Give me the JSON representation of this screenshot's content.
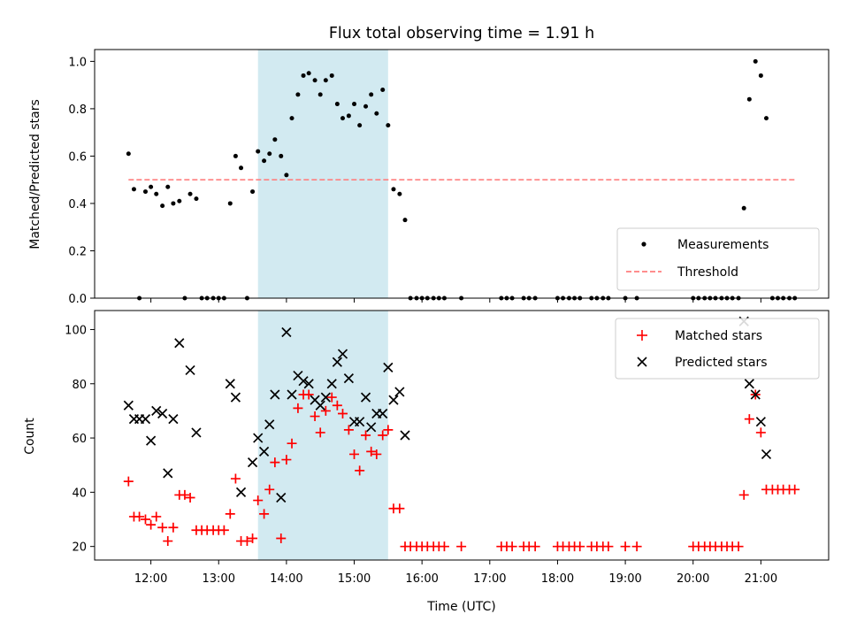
{
  "chart_data": [
    {
      "type": "scatter",
      "title": "Flux total observing time = 1.91 h",
      "xlabel": "",
      "ylabel": "Matched/Predicted stars",
      "x_unit": "hours UTC",
      "xlim": [
        11.17,
        22.0
      ],
      "ylim": [
        0,
        1.05
      ],
      "yticks": [
        "0.0",
        "0.2",
        "0.4",
        "0.6",
        "0.8",
        "1.0"
      ],
      "shaded_span": [
        13.58,
        15.5
      ],
      "shade_color": "#add8e6",
      "threshold": {
        "name": "Threshold",
        "value": 0.5,
        "x_range": [
          11.67,
          21.5
        ],
        "color": "#ff7f7f"
      },
      "legend": {
        "position": "lower-right",
        "entries": [
          "Measurements",
          "Threshold"
        ]
      },
      "series": [
        {
          "name": "Measurements",
          "marker": "dot",
          "color": "#000000",
          "points": [
            [
              11.67,
              0.61
            ],
            [
              11.75,
              0.46
            ],
            [
              11.83,
              0.0
            ],
            [
              11.92,
              0.45
            ],
            [
              12.0,
              0.47
            ],
            [
              12.08,
              0.44
            ],
            [
              12.17,
              0.39
            ],
            [
              12.25,
              0.47
            ],
            [
              12.33,
              0.4
            ],
            [
              12.42,
              0.41
            ],
            [
              12.5,
              0.0
            ],
            [
              12.58,
              0.44
            ],
            [
              12.67,
              0.42
            ],
            [
              12.75,
              0.0
            ],
            [
              12.83,
              0.0
            ],
            [
              12.92,
              0.0
            ],
            [
              13.0,
              0.0
            ],
            [
              13.08,
              0.0
            ],
            [
              13.17,
              0.4
            ],
            [
              13.25,
              0.6
            ],
            [
              13.33,
              0.55
            ],
            [
              13.42,
              0.0
            ],
            [
              13.5,
              0.45
            ],
            [
              13.58,
              0.62
            ],
            [
              13.67,
              0.58
            ],
            [
              13.75,
              0.61
            ],
            [
              13.83,
              0.67
            ],
            [
              13.92,
              0.6
            ],
            [
              14.0,
              0.52
            ],
            [
              14.08,
              0.76
            ],
            [
              14.17,
              0.86
            ],
            [
              14.25,
              0.94
            ],
            [
              14.33,
              0.95
            ],
            [
              14.42,
              0.92
            ],
            [
              14.5,
              0.86
            ],
            [
              14.58,
              0.92
            ],
            [
              14.67,
              0.94
            ],
            [
              14.75,
              0.82
            ],
            [
              14.83,
              0.76
            ],
            [
              14.92,
              0.77
            ],
            [
              15.0,
              0.82
            ],
            [
              15.08,
              0.73
            ],
            [
              15.17,
              0.81
            ],
            [
              15.25,
              0.86
            ],
            [
              15.33,
              0.78
            ],
            [
              15.42,
              0.88
            ],
            [
              15.5,
              0.73
            ],
            [
              15.58,
              0.46
            ],
            [
              15.67,
              0.44
            ],
            [
              15.75,
              0.33
            ],
            [
              15.83,
              0.0
            ],
            [
              15.92,
              0.0
            ],
            [
              16.0,
              0.0
            ],
            [
              16.08,
              0.0
            ],
            [
              16.17,
              0.0
            ],
            [
              16.25,
              0.0
            ],
            [
              16.33,
              0.0
            ],
            [
              16.58,
              0.0
            ],
            [
              17.17,
              0.0
            ],
            [
              17.25,
              0.0
            ],
            [
              17.33,
              0.0
            ],
            [
              17.5,
              0.0
            ],
            [
              17.58,
              0.0
            ],
            [
              17.67,
              0.0
            ],
            [
              18.0,
              0.0
            ],
            [
              18.08,
              0.0
            ],
            [
              18.17,
              0.0
            ],
            [
              18.25,
              0.0
            ],
            [
              18.33,
              0.0
            ],
            [
              18.5,
              0.0
            ],
            [
              18.58,
              0.0
            ],
            [
              18.67,
              0.0
            ],
            [
              18.75,
              0.0
            ],
            [
              19.0,
              0.0
            ],
            [
              19.17,
              0.0
            ],
            [
              20.0,
              0.0
            ],
            [
              20.08,
              0.0
            ],
            [
              20.17,
              0.0
            ],
            [
              20.25,
              0.0
            ],
            [
              20.33,
              0.0
            ],
            [
              20.42,
              0.0
            ],
            [
              20.5,
              0.0
            ],
            [
              20.58,
              0.0
            ],
            [
              20.67,
              0.0
            ],
            [
              20.75,
              0.38
            ],
            [
              20.83,
              0.84
            ],
            [
              20.92,
              1.0
            ],
            [
              21.0,
              0.94
            ],
            [
              21.08,
              0.76
            ],
            [
              21.17,
              0.0
            ],
            [
              21.25,
              0.0
            ],
            [
              21.33,
              0.0
            ],
            [
              21.42,
              0.0
            ],
            [
              21.5,
              0.0
            ]
          ]
        }
      ]
    },
    {
      "type": "scatter",
      "title": "",
      "xlabel": "Time (UTC)",
      "ylabel": "Count",
      "x_unit": "hours UTC",
      "xlim": [
        11.17,
        22.0
      ],
      "ylim": [
        15,
        107
      ],
      "xticks": [
        {
          "value": 12,
          "label": "12:00"
        },
        {
          "value": 13,
          "label": "13:00"
        },
        {
          "value": 14,
          "label": "14:00"
        },
        {
          "value": 15,
          "label": "15:00"
        },
        {
          "value": 16,
          "label": "16:00"
        },
        {
          "value": 17,
          "label": "17:00"
        },
        {
          "value": 18,
          "label": "18:00"
        },
        {
          "value": 19,
          "label": "19:00"
        },
        {
          "value": 20,
          "label": "20:00"
        },
        {
          "value": 21,
          "label": "21:00"
        }
      ],
      "yticks": [
        "20",
        "40",
        "60",
        "80",
        "100"
      ],
      "shaded_span": [
        13.58,
        15.5
      ],
      "shade_color": "#add8e6",
      "legend": {
        "position": "upper-right",
        "entries": [
          "Matched stars",
          "Predicted stars"
        ]
      },
      "series": [
        {
          "name": "Matched stars",
          "marker": "plus",
          "color": "#ff0000",
          "points": [
            [
              11.67,
              44
            ],
            [
              11.75,
              31
            ],
            [
              11.83,
              31
            ],
            [
              11.92,
              30
            ],
            [
              12.0,
              28
            ],
            [
              12.08,
              31
            ],
            [
              12.17,
              27
            ],
            [
              12.25,
              22
            ],
            [
              12.33,
              27
            ],
            [
              12.42,
              39
            ],
            [
              12.5,
              39
            ],
            [
              12.58,
              38
            ],
            [
              12.67,
              26
            ],
            [
              12.75,
              26
            ],
            [
              12.83,
              26
            ],
            [
              12.92,
              26
            ],
            [
              13.0,
              26
            ],
            [
              13.08,
              26
            ],
            [
              13.17,
              32
            ],
            [
              13.25,
              45
            ],
            [
              13.33,
              22
            ],
            [
              13.42,
              22
            ],
            [
              13.5,
              23
            ],
            [
              13.58,
              37
            ],
            [
              13.67,
              32
            ],
            [
              13.75,
              41
            ],
            [
              13.83,
              51
            ],
            [
              13.92,
              23
            ],
            [
              14.0,
              52
            ],
            [
              14.08,
              58
            ],
            [
              14.17,
              71
            ],
            [
              14.25,
              76
            ],
            [
              14.33,
              76
            ],
            [
              14.42,
              68
            ],
            [
              14.5,
              62
            ],
            [
              14.58,
              70
            ],
            [
              14.67,
              75
            ],
            [
              14.75,
              72
            ],
            [
              14.83,
              69
            ],
            [
              14.92,
              63
            ],
            [
              15.0,
              54
            ],
            [
              15.08,
              48
            ],
            [
              15.17,
              61
            ],
            [
              15.25,
              55
            ],
            [
              15.33,
              54
            ],
            [
              15.42,
              61
            ],
            [
              15.5,
              63
            ],
            [
              15.58,
              34
            ],
            [
              15.67,
              34
            ],
            [
              15.75,
              20
            ],
            [
              15.83,
              20
            ],
            [
              15.92,
              20
            ],
            [
              16.0,
              20
            ],
            [
              16.08,
              20
            ],
            [
              16.17,
              20
            ],
            [
              16.25,
              20
            ],
            [
              16.33,
              20
            ],
            [
              16.58,
              20
            ],
            [
              17.17,
              20
            ],
            [
              17.25,
              20
            ],
            [
              17.33,
              20
            ],
            [
              17.5,
              20
            ],
            [
              17.58,
              20
            ],
            [
              17.67,
              20
            ],
            [
              18.0,
              20
            ],
            [
              18.08,
              20
            ],
            [
              18.17,
              20
            ],
            [
              18.25,
              20
            ],
            [
              18.33,
              20
            ],
            [
              18.5,
              20
            ],
            [
              18.58,
              20
            ],
            [
              18.67,
              20
            ],
            [
              18.75,
              20
            ],
            [
              19.0,
              20
            ],
            [
              19.17,
              20
            ],
            [
              20.0,
              20
            ],
            [
              20.08,
              20
            ],
            [
              20.17,
              20
            ],
            [
              20.25,
              20
            ],
            [
              20.33,
              20
            ],
            [
              20.42,
              20
            ],
            [
              20.5,
              20
            ],
            [
              20.58,
              20
            ],
            [
              20.67,
              20
            ],
            [
              20.75,
              39
            ],
            [
              20.83,
              67
            ],
            [
              20.92,
              76
            ],
            [
              21.0,
              62
            ],
            [
              21.08,
              41
            ],
            [
              21.17,
              41
            ],
            [
              21.25,
              41
            ],
            [
              21.33,
              41
            ],
            [
              21.42,
              41
            ],
            [
              21.5,
              41
            ]
          ]
        },
        {
          "name": "Predicted stars",
          "marker": "x",
          "color": "#000000",
          "points": [
            [
              11.67,
              72
            ],
            [
              11.75,
              67
            ],
            [
              11.83,
              67
            ],
            [
              11.92,
              67
            ],
            [
              12.0,
              59
            ],
            [
              12.08,
              70
            ],
            [
              12.17,
              69
            ],
            [
              12.25,
              47
            ],
            [
              12.33,
              67
            ],
            [
              12.42,
              95
            ],
            [
              12.58,
              85
            ],
            [
              12.67,
              62
            ],
            [
              13.17,
              80
            ],
            [
              13.25,
              75
            ],
            [
              13.33,
              40
            ],
            [
              13.5,
              51
            ],
            [
              13.58,
              60
            ],
            [
              13.67,
              55
            ],
            [
              13.75,
              65
            ],
            [
              13.83,
              76
            ],
            [
              13.92,
              38
            ],
            [
              14.0,
              99
            ],
            [
              14.08,
              76
            ],
            [
              14.17,
              83
            ],
            [
              14.25,
              81
            ],
            [
              14.33,
              80
            ],
            [
              14.42,
              74
            ],
            [
              14.5,
              72
            ],
            [
              14.58,
              75
            ],
            [
              14.67,
              80
            ],
            [
              14.75,
              88
            ],
            [
              14.83,
              91
            ],
            [
              14.92,
              82
            ],
            [
              15.0,
              66
            ],
            [
              15.08,
              66
            ],
            [
              15.17,
              75
            ],
            [
              15.25,
              64
            ],
            [
              15.33,
              69
            ],
            [
              15.42,
              69
            ],
            [
              15.5,
              86
            ],
            [
              15.58,
              74
            ],
            [
              15.67,
              77
            ],
            [
              15.75,
              61
            ],
            [
              20.75,
              103
            ],
            [
              20.83,
              80
            ],
            [
              20.92,
              76
            ],
            [
              21.0,
              66
            ],
            [
              21.08,
              54
            ]
          ]
        }
      ]
    }
  ]
}
